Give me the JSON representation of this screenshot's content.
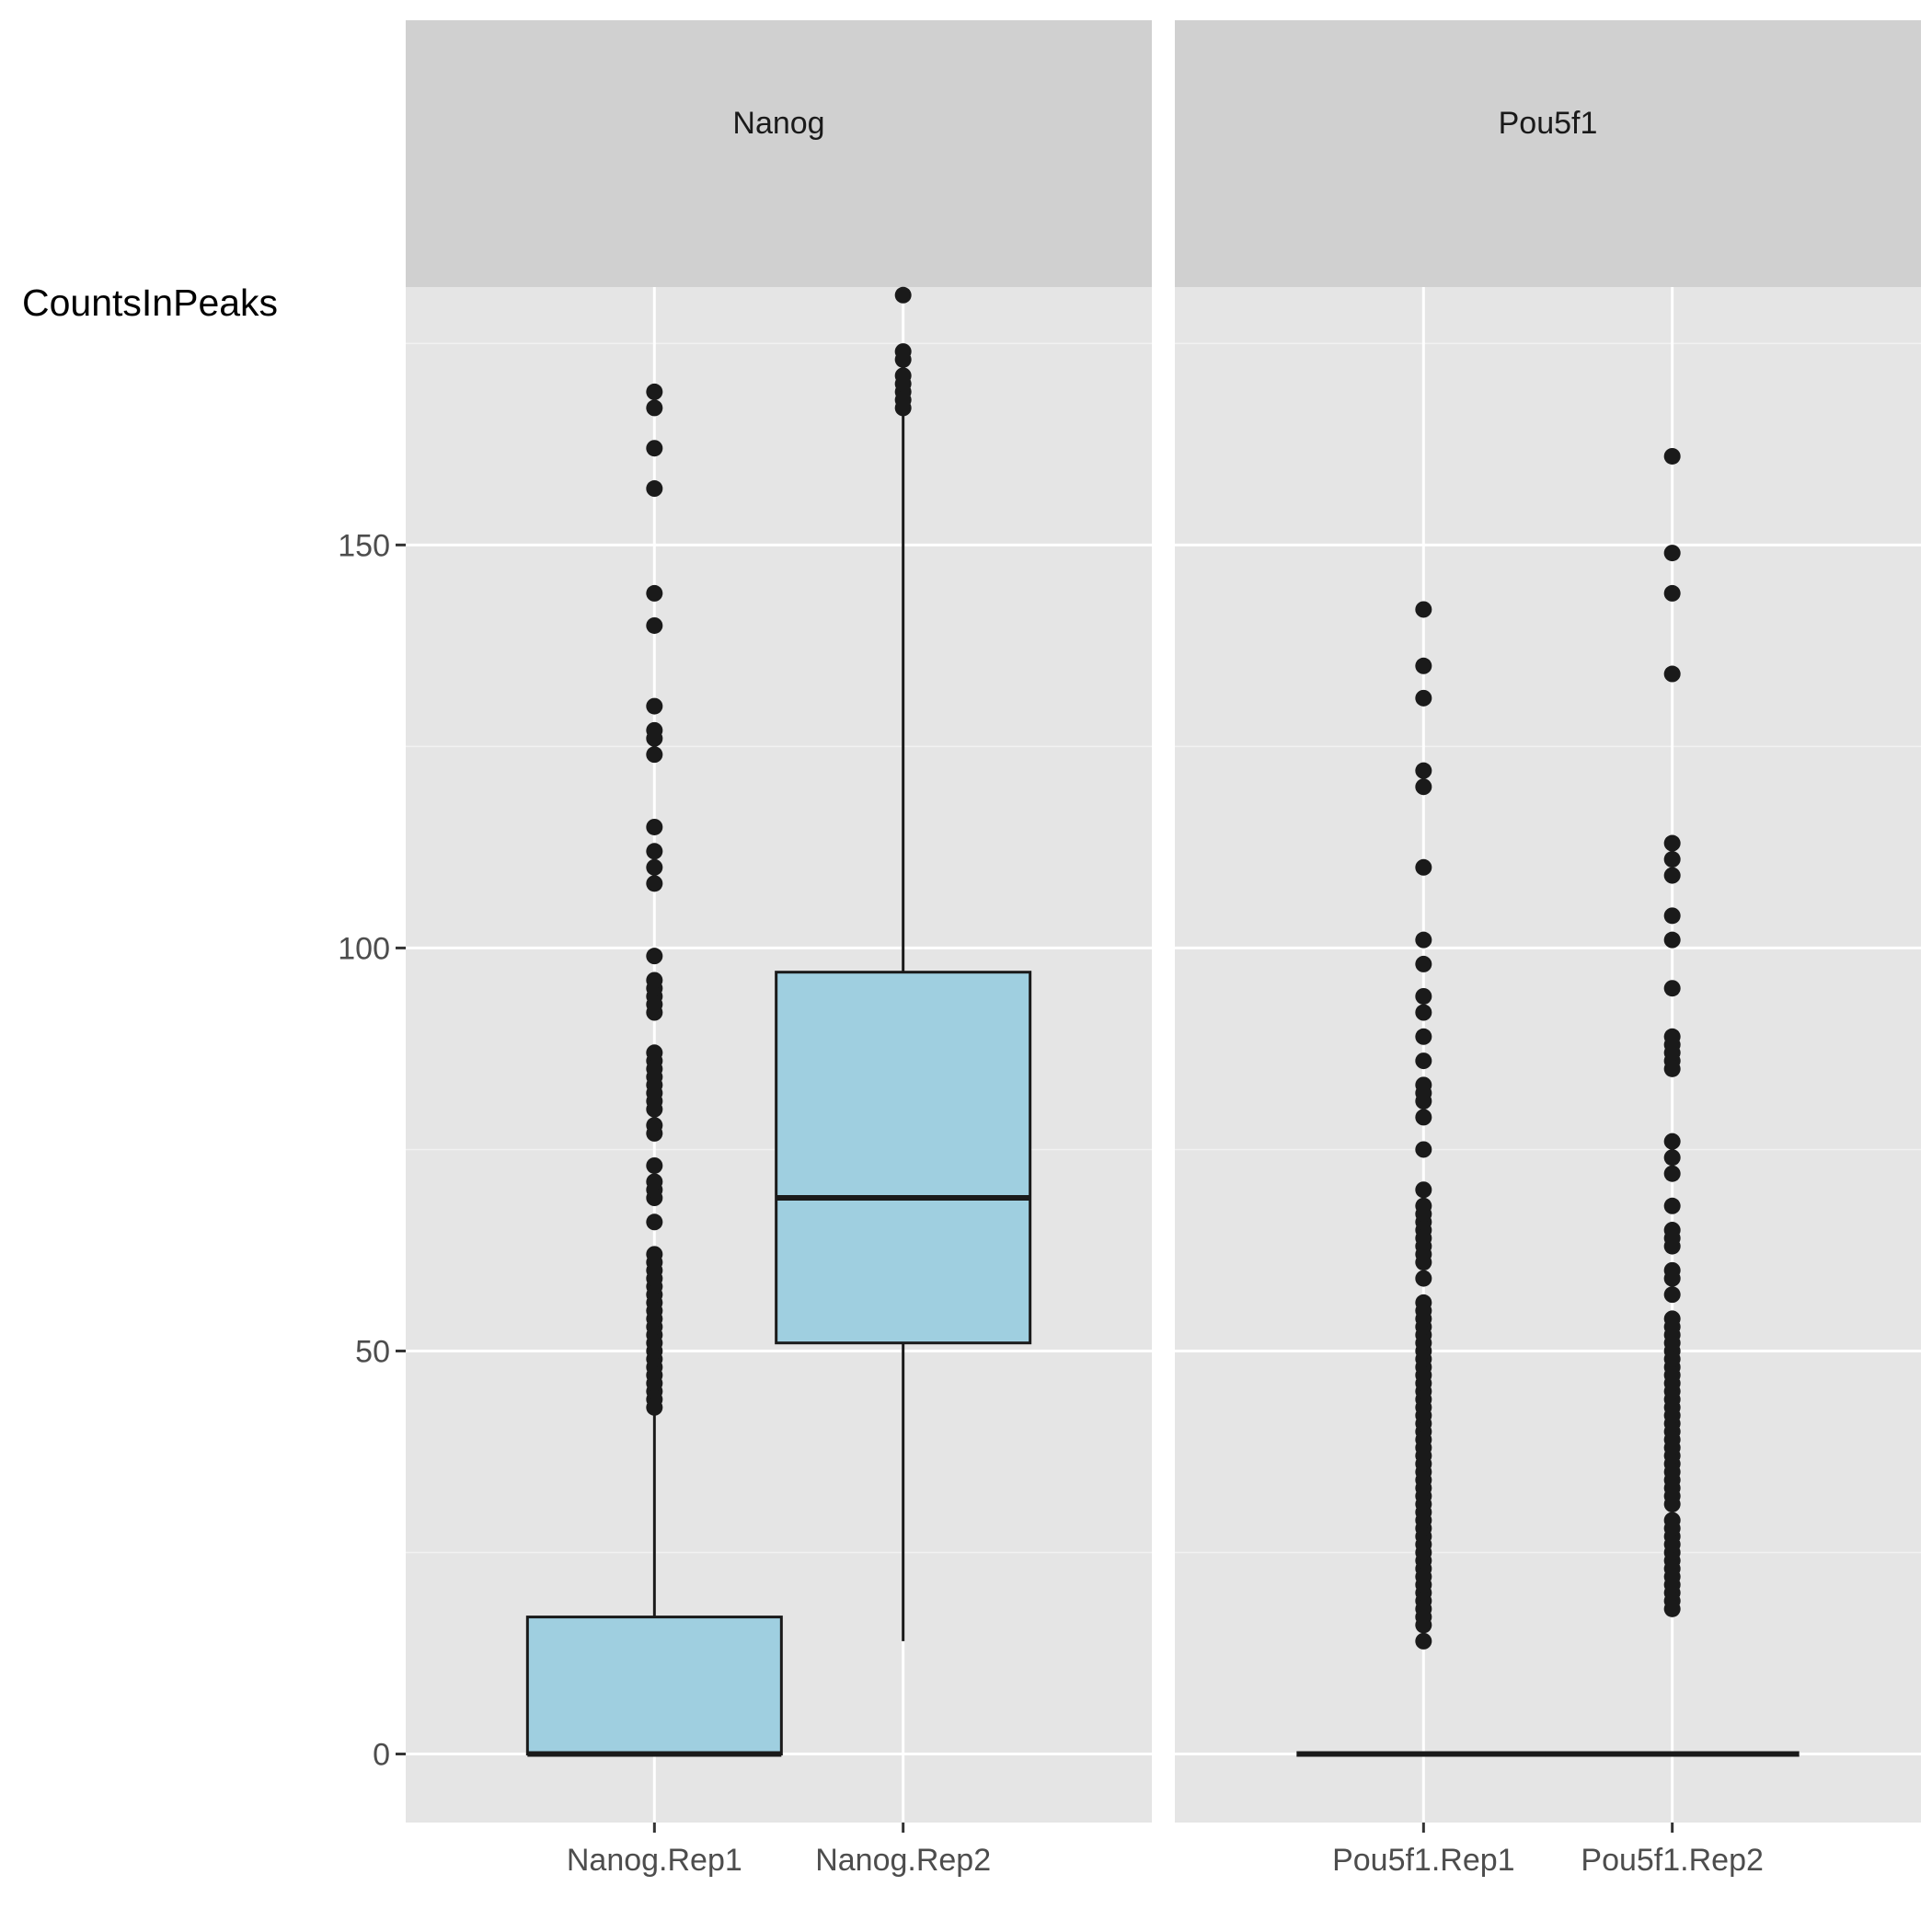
{
  "chart_data": {
    "type": "boxplot",
    "ylabel": "CountsInPeaks",
    "ylim": [
      -8.5,
      182
    ],
    "yticks": [
      0,
      50,
      100,
      150
    ],
    "fill_color": "#9fcfe0",
    "panel_bg": "#e5e5e5",
    "strip_bg": "#d0d0d0",
    "panels": [
      {
        "strip_label": "Nanog",
        "groups": [
          {
            "label": "Nanog.Rep1",
            "q1": 0,
            "median": 0,
            "q3": 17,
            "whisker_low": 0,
            "whisker_high": 43,
            "outliers": [
              43,
              44,
              45,
              46,
              47,
              48,
              49,
              50,
              51,
              52,
              53,
              54,
              55,
              56,
              57,
              58,
              59,
              60,
              61,
              62,
              66,
              69,
              70,
              71,
              73,
              77,
              78,
              80,
              81,
              82,
              83,
              84,
              85,
              86,
              87,
              92,
              93,
              94,
              95,
              96,
              99,
              108,
              110,
              112,
              115,
              124,
              126,
              127,
              130,
              140,
              144,
              157,
              162,
              167,
              169
            ]
          },
          {
            "label": "Nanog.Rep2",
            "q1": 51,
            "median": 69,
            "q3": 97,
            "whisker_low": 14,
            "whisker_high": 167,
            "outliers": [
              167,
              168,
              169,
              170,
              171,
              173,
              174,
              181
            ]
          }
        ]
      },
      {
        "strip_label": "Pou5f1",
        "groups": [
          {
            "label": "Pou5f1.Rep1",
            "q1": 0,
            "median": 0,
            "q3": 0,
            "whisker_low": 0,
            "whisker_high": 0,
            "outliers": [
              14,
              16,
              17,
              18,
              19,
              20,
              21,
              22,
              23,
              24,
              25,
              26,
              27,
              28,
              29,
              30,
              31,
              32,
              33,
              34,
              35,
              36,
              37,
              38,
              39,
              40,
              41,
              42,
              43,
              44,
              45,
              46,
              47,
              48,
              49,
              50,
              51,
              52,
              53,
              54,
              55,
              56,
              59,
              61,
              62,
              63,
              64,
              65,
              66,
              67,
              68,
              70,
              75,
              79,
              81,
              82,
              83,
              86,
              89,
              92,
              94,
              98,
              101,
              110,
              120,
              122,
              131,
              135,
              142
            ]
          },
          {
            "label": "Pou5f1.Rep2",
            "q1": 0,
            "median": 0,
            "q3": 0,
            "whisker_low": 0,
            "whisker_high": 0,
            "outliers": [
              18,
              19,
              20,
              21,
              22,
              23,
              24,
              25,
              26,
              27,
              28,
              29,
              31,
              32,
              33,
              34,
              35,
              36,
              37,
              38,
              39,
              40,
              41,
              42,
              43,
              44,
              45,
              46,
              47,
              48,
              49,
              50,
              51,
              52,
              53,
              54,
              57,
              59,
              60,
              63,
              64,
              65,
              68,
              72,
              74,
              76,
              85,
              86,
              87,
              88,
              89,
              95,
              101,
              104,
              109,
              111,
              113,
              134,
              144,
              149,
              161
            ]
          }
        ]
      }
    ]
  }
}
